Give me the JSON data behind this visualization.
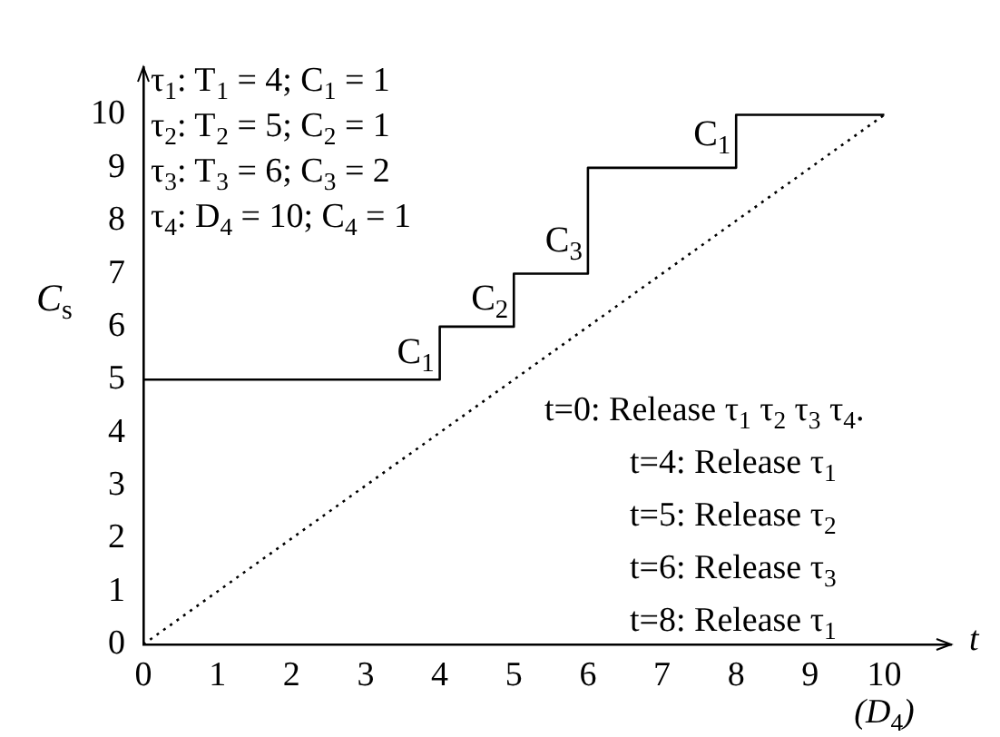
{
  "chart_data": {
    "type": "line",
    "xlabel": "t",
    "ylabel": "C$_{s}$",
    "xlim": [
      0,
      10.9
    ],
    "ylim": [
      0,
      10.9
    ],
    "xticks": [
      0,
      1,
      2,
      3,
      4,
      5,
      6,
      7,
      8,
      9,
      10
    ],
    "yticks": [
      0,
      1,
      2,
      3,
      4,
      5,
      6,
      7,
      8,
      9,
      10
    ],
    "grid": false,
    "legend": false,
    "marker": "none",
    "series": [
      {
        "type": "step",
        "color": "#000000",
        "line_style": "solid",
        "x": [
          0,
          4,
          5,
          6,
          8,
          10
        ],
        "values": [
          5,
          6,
          7,
          9,
          10,
          10
        ]
      },
      {
        "color": "#000000",
        "line_style": "dotted",
        "x": [
          0,
          10
        ],
        "values": [
          0,
          10
        ]
      }
    ],
    "annotations": [
      "τ$_{1}$: T$_{1}$ = 4; C$_{1}$ = 1\nτ$_{2}$: T$_{2}$ = 5; C$_{2}$ = 1\nτ$_{3}$: T$_{3}$ = 6; C$_{3}$ = 2\nτ$_{4}$: D$_{4}$ = 10; C$_{4}$ = 1",
      "t=0: Release τ$_{1}$ τ$_{2}$ τ$_{3}$ τ$_{4}$.\nt=4: Release τ$_{1}$\nt=5: Release τ$_{2}$\nt=6: Release τ$_{3}$\nt=8: Release τ$_{1}$",
      {
        "text": "C$_{1}$",
        "x": 4,
        "y": 5.5
      },
      {
        "text": "C$_{2}$",
        "x": 5,
        "y": 6.5
      },
      {
        "text": "C$_{3}$",
        "x": 6,
        "y": 7.6
      },
      {
        "text": "C$_{1}$",
        "x": 8,
        "y": 9.6
      },
      "(D$_{4}$)"
    ]
  }
}
